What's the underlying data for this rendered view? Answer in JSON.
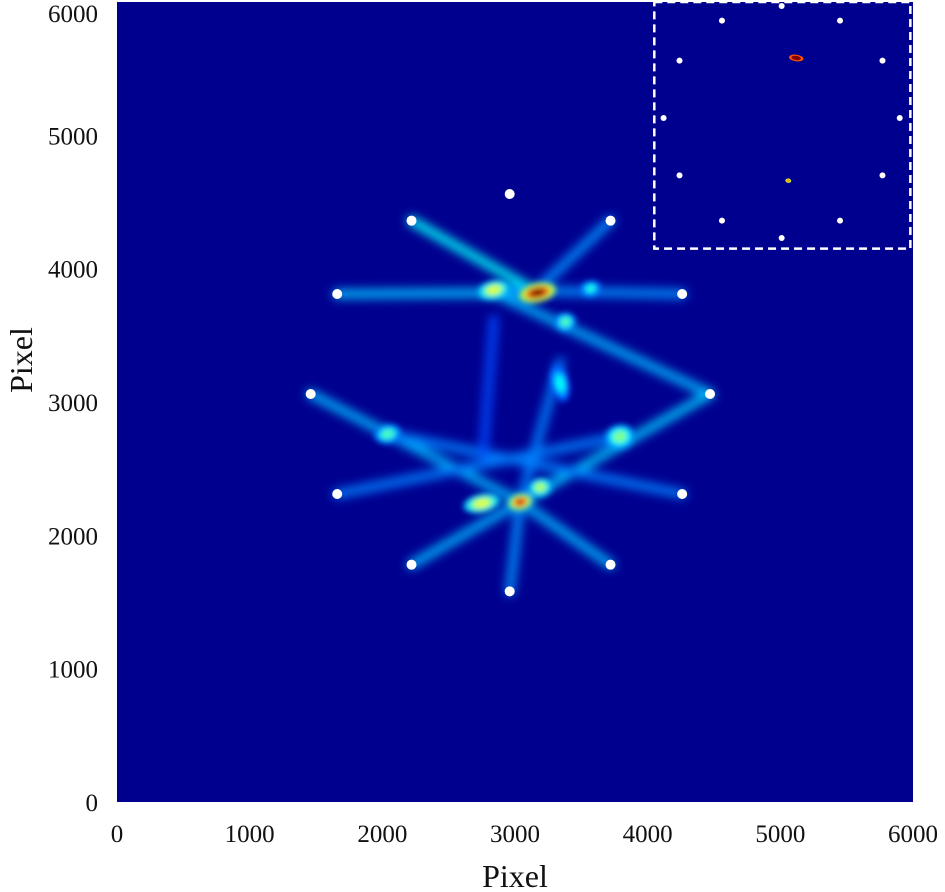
{
  "chart_data": {
    "type": "heatmap",
    "xlabel": "Pixel",
    "ylabel": "Pixel",
    "xlim": [
      0,
      6000
    ],
    "ylim": [
      0,
      6000
    ],
    "xticks": [
      0,
      1000,
      2000,
      3000,
      4000,
      5000,
      6000
    ],
    "yticks": [
      0,
      1000,
      2000,
      3000,
      4000,
      5000,
      6000
    ],
    "colormap": "jet",
    "background_color": "#00008f",
    "colors": {
      "low": "#00008f",
      "mid": "#00ffff",
      "high": "#ff0000",
      "marker": "#ffffff",
      "inset_border": "#ffffff"
    },
    "grid": false,
    "legend": "none",
    "source_markers": {
      "shape": "circle",
      "color": "white",
      "points": [
        {
          "x": 2960,
          "y": 4560
        },
        {
          "x": 2220,
          "y": 4360
        },
        {
          "x": 3720,
          "y": 4360
        },
        {
          "x": 1660,
          "y": 3810
        },
        {
          "x": 4260,
          "y": 3810
        },
        {
          "x": 1460,
          "y": 3060
        },
        {
          "x": 4470,
          "y": 3060
        },
        {
          "x": 1660,
          "y": 2310
        },
        {
          "x": 4260,
          "y": 2310
        },
        {
          "x": 2220,
          "y": 1780
        },
        {
          "x": 3720,
          "y": 1780
        },
        {
          "x": 2960,
          "y": 1580
        }
      ]
    },
    "intensity_peaks": [
      {
        "x": 3170,
        "y": 3820,
        "level": 1.0,
        "sx": 140,
        "sy": 70
      },
      {
        "x": 3040,
        "y": 2250,
        "level": 0.92,
        "sx": 90,
        "sy": 60
      },
      {
        "x": 2840,
        "y": 3840,
        "level": 0.6,
        "sx": 120,
        "sy": 70
      },
      {
        "x": 2750,
        "y": 2240,
        "level": 0.6,
        "sx": 140,
        "sy": 70
      },
      {
        "x": 3790,
        "y": 2740,
        "level": 0.5,
        "sx": 110,
        "sy": 90
      },
      {
        "x": 2040,
        "y": 2760,
        "level": 0.45,
        "sx": 100,
        "sy": 70
      },
      {
        "x": 3380,
        "y": 3600,
        "level": 0.45,
        "sx": 80,
        "sy": 70
      },
      {
        "x": 3190,
        "y": 2360,
        "level": 0.55,
        "sx": 90,
        "sy": 70
      },
      {
        "x": 3570,
        "y": 3850,
        "level": 0.4,
        "sx": 80,
        "sy": 60
      },
      {
        "x": 3340,
        "y": 3140,
        "level": 0.38,
        "sx": 70,
        "sy": 140
      }
    ],
    "streaks": [
      {
        "from": [
          2220,
          4360
        ],
        "to": [
          3170,
          3820
        ],
        "level": 0.42
      },
      {
        "from": [
          1660,
          3810
        ],
        "to": [
          3170,
          3820
        ],
        "level": 0.35
      },
      {
        "from": [
          4260,
          3810
        ],
        "to": [
          2840,
          3840
        ],
        "level": 0.3
      },
      {
        "from": [
          3720,
          4360
        ],
        "to": [
          3100,
          3780
        ],
        "level": 0.3
      },
      {
        "from": [
          4470,
          3060
        ],
        "to": [
          2840,
          3820
        ],
        "level": 0.34
      },
      {
        "from": [
          1460,
          3060
        ],
        "to": [
          3040,
          2250
        ],
        "level": 0.34
      },
      {
        "from": [
          4470,
          3060
        ],
        "to": [
          3040,
          2250
        ],
        "level": 0.36
      },
      {
        "from": [
          1660,
          2310
        ],
        "to": [
          3790,
          2740
        ],
        "level": 0.28
      },
      {
        "from": [
          4260,
          2310
        ],
        "to": [
          2040,
          2760
        ],
        "level": 0.28
      },
      {
        "from": [
          2220,
          1780
        ],
        "to": [
          3040,
          2250
        ],
        "level": 0.34
      },
      {
        "from": [
          3720,
          1780
        ],
        "to": [
          3040,
          2250
        ],
        "level": 0.34
      },
      {
        "from": [
          2960,
          1580
        ],
        "to": [
          3040,
          2250
        ],
        "level": 0.3
      },
      {
        "from": [
          3040,
          2250
        ],
        "to": [
          3340,
          3300
        ],
        "level": 0.28
      },
      {
        "from": [
          2760,
          2600
        ],
        "to": [
          2840,
          3620
        ],
        "level": 0.22
      }
    ],
    "inset": {
      "border": "white-dashed",
      "position": "top-right",
      "x_range": [
        4050,
        5980
      ],
      "y_range": [
        4150,
        6000
      ],
      "markers": [
        {
          "x": 5010,
          "y": 5970
        },
        {
          "x": 4560,
          "y": 5860
        },
        {
          "x": 5450,
          "y": 5860
        },
        {
          "x": 4240,
          "y": 5560
        },
        {
          "x": 5770,
          "y": 5560
        },
        {
          "x": 4120,
          "y": 5130
        },
        {
          "x": 5900,
          "y": 5130
        },
        {
          "x": 4240,
          "y": 4700
        },
        {
          "x": 5770,
          "y": 4700
        },
        {
          "x": 4560,
          "y": 4360
        },
        {
          "x": 5450,
          "y": 4360
        },
        {
          "x": 5010,
          "y": 4230
        }
      ],
      "peaks": [
        {
          "x": 5120,
          "y": 5580,
          "level": 1.0,
          "sx": 55,
          "sy": 25
        },
        {
          "x": 5060,
          "y": 4660,
          "level": 0.72,
          "sx": 22,
          "sy": 16
        }
      ]
    }
  }
}
